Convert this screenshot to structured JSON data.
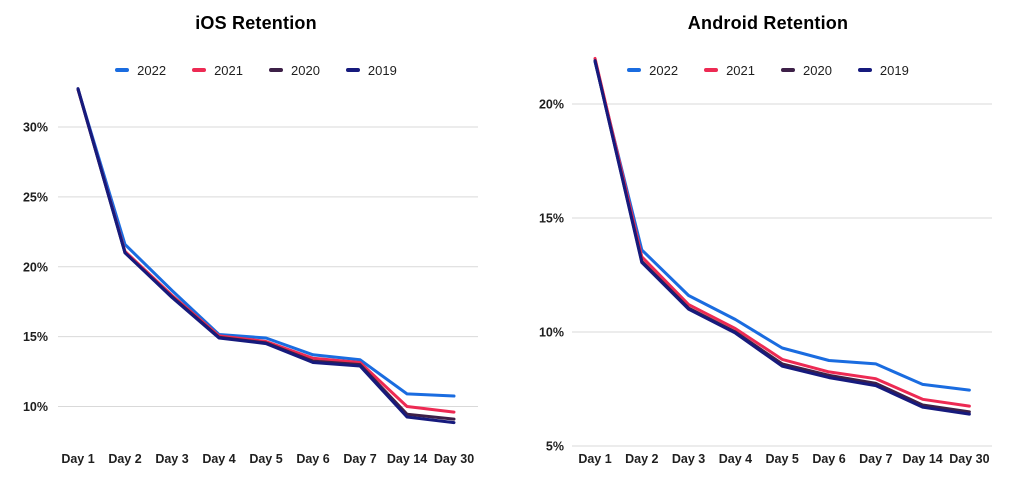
{
  "charts_header": {
    "ios_title": "iOS Retention",
    "android_title": "Android Retention"
  },
  "chart_data": [
    {
      "type": "line",
      "title": "iOS Retention",
      "categories": [
        "Day 1",
        "Day 2",
        "Day 3",
        "Day 4",
        "Day 5",
        "Day 6",
        "Day 7",
        "Day 14",
        "Day 30"
      ],
      "xlabel": "",
      "ylabel": "",
      "y_tick_labels": [
        "30%",
        "25%",
        "20%",
        "15%",
        "10%"
      ],
      "y_tick_values": [
        30,
        25,
        20,
        15,
        10
      ],
      "ylim": [
        8,
        34
      ],
      "grid": true,
      "legend_position": "top",
      "series": [
        {
          "name": "2022",
          "color": "#1a6ce0",
          "values": [
            32.7,
            21.6,
            18.3,
            15.15,
            14.9,
            13.7,
            13.35,
            10.9,
            10.75
          ]
        },
        {
          "name": "2021",
          "color": "#ed2a53",
          "values": [
            32.7,
            21.1,
            17.95,
            15.05,
            14.65,
            13.45,
            13.15,
            10.0,
            9.6
          ]
        },
        {
          "name": "2020",
          "color": "#3d2048",
          "values": [
            32.7,
            21.0,
            17.85,
            14.95,
            14.55,
            13.25,
            13.0,
            9.45,
            9.1
          ]
        },
        {
          "name": "2019",
          "color": "#161a7d",
          "values": [
            32.75,
            21.0,
            17.8,
            14.9,
            14.5,
            13.15,
            12.9,
            9.25,
            8.85
          ]
        }
      ]
    },
    {
      "type": "line",
      "title": "Android Retention",
      "categories": [
        "Day 1",
        "Day 2",
        "Day 3",
        "Day 4",
        "Day 5",
        "Day 6",
        "Day 7",
        "Day 14",
        "Day 30"
      ],
      "xlabel": "",
      "ylabel": "",
      "y_tick_labels": [
        "20%",
        "15%",
        "10%",
        "5%"
      ],
      "y_tick_values": [
        20,
        15,
        10,
        5
      ],
      "ylim": [
        5,
        22.5
      ],
      "grid": true,
      "legend_position": "top",
      "series": [
        {
          "name": "2022",
          "color": "#1a6ce0",
          "values": [
            21.85,
            13.6,
            11.6,
            10.55,
            9.3,
            8.75,
            8.6,
            7.7,
            7.45
          ]
        },
        {
          "name": "2021",
          "color": "#ed2a53",
          "values": [
            22.0,
            13.3,
            11.2,
            10.15,
            8.8,
            8.25,
            7.95,
            7.05,
            6.75
          ]
        },
        {
          "name": "2020",
          "color": "#3d2048",
          "values": [
            21.9,
            13.1,
            11.05,
            10.0,
            8.6,
            8.1,
            7.75,
            6.8,
            6.5
          ]
        },
        {
          "name": "2019",
          "color": "#161a7d",
          "values": [
            21.9,
            13.05,
            11.0,
            9.95,
            8.5,
            8.0,
            7.65,
            6.7,
            6.4
          ]
        }
      ]
    }
  ],
  "style": {
    "gridline_color": "#d9d9d9",
    "axis_text_color": "#1f1f1f",
    "title_color": "#000000",
    "background": "#ffffff"
  }
}
